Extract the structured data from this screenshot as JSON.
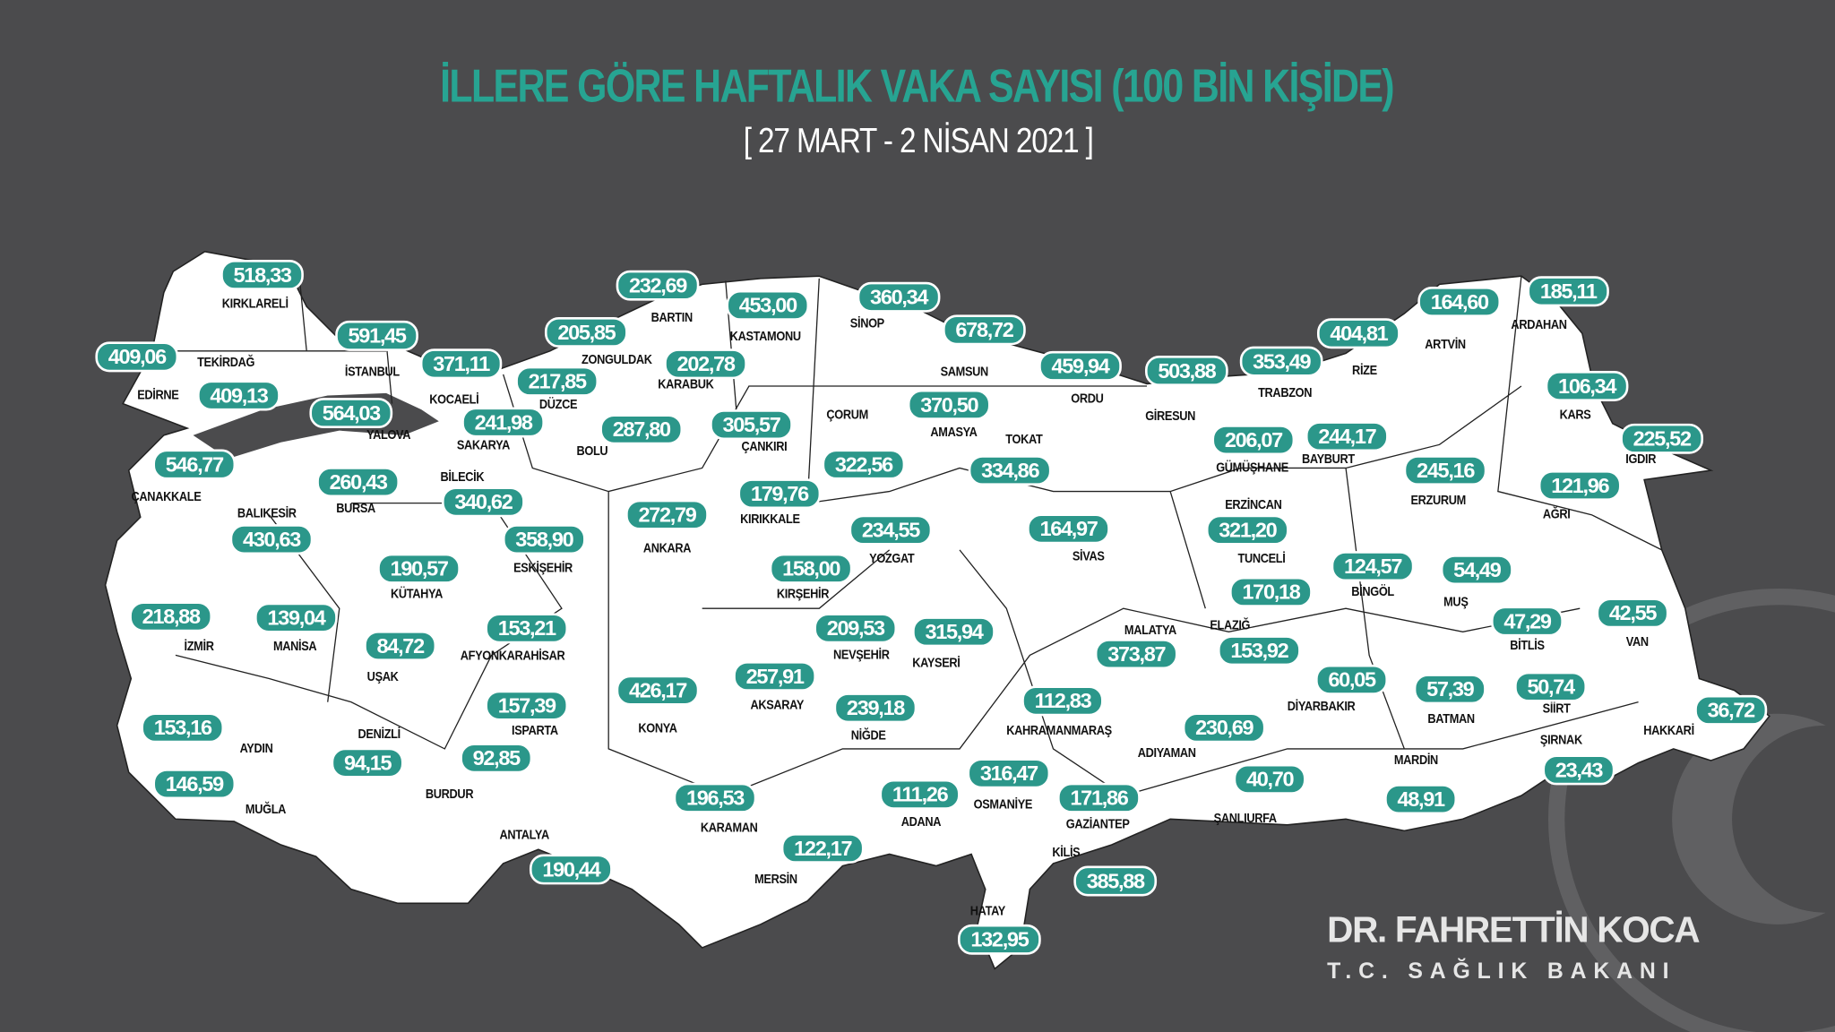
{
  "header": {
    "title": "İLLERE GÖRE HAFTALIK VAKA SAYISI (100 BİN KİŞİDE)",
    "subtitle": "[ 27 MART - 2 NİSAN 2021 ]"
  },
  "footer": {
    "name": "DR. FAHRETTİN KOCA",
    "role": "T.C. SAĞLIK BAKANI"
  },
  "colors": {
    "background": "#4b4b4d",
    "accent": "#2b978a",
    "title": "#27a492",
    "land": "#ffffff"
  },
  "provinces": [
    {
      "name": "KIRKLARELİ",
      "value": "518,33"
    },
    {
      "name": "EDİRNE",
      "value": "409,06"
    },
    {
      "name": "TEKİRDAĞ",
      "value": "409,13"
    },
    {
      "name": "İSTANBUL",
      "value": "591,45"
    },
    {
      "name": "KOCAELİ",
      "value": "371,11"
    },
    {
      "name": "YALOVA",
      "value": "564,03"
    },
    {
      "name": "SAKARYA",
      "value": "241,98"
    },
    {
      "name": "DÜZCE",
      "value": "217,85"
    },
    {
      "name": "ZONGULDAK",
      "value": "205,85"
    },
    {
      "name": "BARTIN",
      "value": "232,69"
    },
    {
      "name": "KARABÜK",
      "value": "202,78"
    },
    {
      "name": "KASTAMONU",
      "value": "453,00"
    },
    {
      "name": "SİNOP",
      "value": "360,34"
    },
    {
      "name": "SAMSUN",
      "value": "678,72"
    },
    {
      "name": "BOLU",
      "value": "287,80"
    },
    {
      "name": "ÇANKIRI",
      "value": "305,57"
    },
    {
      "name": "ÇORUM",
      "value": "322,56"
    },
    {
      "name": "AMASYA",
      "value": "370,50"
    },
    {
      "name": "TOKAT",
      "value": "334,86"
    },
    {
      "name": "ORDU",
      "value": "459,94"
    },
    {
      "name": "GİRESUN",
      "value": "503,88"
    },
    {
      "name": "TRABZON",
      "value": "353,49"
    },
    {
      "name": "RİZE",
      "value": "404,81"
    },
    {
      "name": "ARTVİN",
      "value": "164,60"
    },
    {
      "name": "ARDAHAN",
      "value": "185,11"
    },
    {
      "name": "KARS",
      "value": "106,34"
    },
    {
      "name": "IĞDIR",
      "value": "225,52"
    },
    {
      "name": "AĞRI",
      "value": "121,96"
    },
    {
      "name": "ERZURUM",
      "value": "245,16"
    },
    {
      "name": "BAYBURT",
      "value": "244,17"
    },
    {
      "name": "GÜMÜŞHANE",
      "value": "206,07"
    },
    {
      "name": "ERZİNCAN",
      "value": "321,20"
    },
    {
      "name": "TUNCELİ",
      "value": "170,18"
    },
    {
      "name": "BİNGÖL",
      "value": "124,57"
    },
    {
      "name": "MUŞ",
      "value": "54,49"
    },
    {
      "name": "BİTLİS",
      "value": "47,29"
    },
    {
      "name": "VAN",
      "value": "42,55"
    },
    {
      "name": "HAKKARİ",
      "value": "36,72"
    },
    {
      "name": "ŞIRNAK",
      "value": "23,43"
    },
    {
      "name": "SİİRT",
      "value": "50,74"
    },
    {
      "name": "BATMAN",
      "value": "57,39"
    },
    {
      "name": "MARDİN",
      "value": "48,91"
    },
    {
      "name": "DİYARBAKIR",
      "value": "60,05"
    },
    {
      "name": "ŞANLIURFA",
      "value": "40,70"
    },
    {
      "name": "ADIYAMAN",
      "value": "230,69"
    },
    {
      "name": "MALATYA",
      "value": "373,87"
    },
    {
      "name": "ELAZIĞ",
      "value": "153,92"
    },
    {
      "name": "KAHRAMANMARAŞ",
      "value": "112,83"
    },
    {
      "name": "GAZİANTEP",
      "value": "171,86"
    },
    {
      "name": "KİLİS",
      "value": "385,88"
    },
    {
      "name": "OSMANİYE",
      "value": "316,47"
    },
    {
      "name": "HATAY",
      "value": "132,95"
    },
    {
      "name": "ADANA",
      "value": "111,26"
    },
    {
      "name": "MERSİN",
      "value": "122,17"
    },
    {
      "name": "KARAMAN",
      "value": "196,53"
    },
    {
      "name": "ANTALYA",
      "value": "190,44"
    },
    {
      "name": "KONYA",
      "value": "426,17"
    },
    {
      "name": "AKSARAY",
      "value": "257,91"
    },
    {
      "name": "NİĞDE",
      "value": "239,18"
    },
    {
      "name": "NEVŞEHİR",
      "value": "209,53"
    },
    {
      "name": "KAYSERİ",
      "value": "315,94"
    },
    {
      "name": "KIRŞEHİR",
      "value": "158,00"
    },
    {
      "name": "YOZGAT",
      "value": "234,55"
    },
    {
      "name": "KIRIKKALE",
      "value": "179,76"
    },
    {
      "name": "SİVAS",
      "value": "164,97"
    },
    {
      "name": "ANKARA",
      "value": "272,79"
    },
    {
      "name": "ESKİŞEHİR",
      "value": "358,90"
    },
    {
      "name": "BİLECİK",
      "value": "340,62"
    },
    {
      "name": "BURSA",
      "value": "260,43"
    },
    {
      "name": "BALIKESİR",
      "value": "430,63"
    },
    {
      "name": "ÇANAKKALE",
      "value": "546,77"
    },
    {
      "name": "KÜTAHYA",
      "value": "190,57"
    },
    {
      "name": "MANİSA",
      "value": "139,04"
    },
    {
      "name": "İZMİR",
      "value": "218,88"
    },
    {
      "name": "UŞAK",
      "value": "84,72"
    },
    {
      "name": "AFYONKARAHİSAR",
      "value": "153,21"
    },
    {
      "name": "ISPARTA",
      "value": "157,39"
    },
    {
      "name": "BURDUR",
      "value": "92,85"
    },
    {
      "name": "DENİZLİ",
      "value": "94,15"
    },
    {
      "name": "AYDIN",
      "value": "153,16"
    },
    {
      "name": "MUĞLA",
      "value": "146,59"
    }
  ]
}
